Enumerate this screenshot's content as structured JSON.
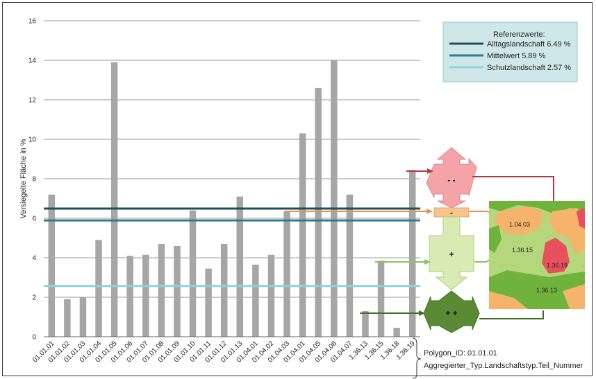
{
  "chart_data": {
    "type": "bar",
    "ylabel": "Versiegelte Fläche in %",
    "ylim": [
      0,
      16
    ],
    "yticks": [
      0,
      2,
      4,
      6,
      8,
      10,
      12,
      14,
      16
    ],
    "grid": true,
    "categories": [
      "01.01.01",
      "01.01.02",
      "01.01.03",
      "01.01.04",
      "01.01.05",
      "01.01.06",
      "01.01.07",
      "01.01.08",
      "01.01.09",
      "01.01.10",
      "01.01.11",
      "01.01.12",
      "01.01.13",
      "01.04.01",
      "01.04.02",
      "01.04.03",
      "01.04.01",
      "01.04.05",
      "01.04.06",
      "01.04.07",
      "1.36.13",
      "1.36.15",
      "1.36.18",
      "1.36.19"
    ],
    "values": [
      7.2,
      1.9,
      2.0,
      4.9,
      13.9,
      4.1,
      4.15,
      4.7,
      4.6,
      6.4,
      3.45,
      4.7,
      7.1,
      3.65,
      4.15,
      6.35,
      10.3,
      12.6,
      14.0,
      7.2,
      1.3,
      3.85,
      0.45,
      8.45
    ],
    "bar_color": "#a6a6a6",
    "reference_lines": [
      {
        "name": "Alltagslandschaft 6.49 %",
        "value": 6.49,
        "color": "#1f4e5a"
      },
      {
        "name": "Mittelwert 5.89 %",
        "value": 5.89,
        "color": "#2e7c8c"
      },
      {
        "name": "Schutzlandschaft 2.57 %",
        "value": 2.57,
        "color": "#8fd3dc"
      }
    ],
    "legend": {
      "title": "Referenzwerte:",
      "position": "top-right",
      "background": "#cfe7e8"
    }
  },
  "polygon_note": {
    "line1": "Polygon_ID: 01.01.01",
    "line2": "Aggregierter_Typ.Landschaftstyp.Teil_Nummer"
  },
  "classes": [
    {
      "label": "- -",
      "color": "#f4a3a6",
      "connector": "#b53a46"
    },
    {
      "label": "-",
      "color": "#f7c48e",
      "connector": "#e8924c"
    },
    {
      "label": "+",
      "color": "#d7ebb2",
      "connector": "#8fc05a"
    },
    {
      "label": "+ +",
      "color": "#5a8a33",
      "connector": "#3f6e25"
    }
  ],
  "map": {
    "labels": [
      "1.04.03",
      "1.36.15",
      "1.36.19",
      "1.36.13"
    ],
    "colors": {
      "light_green": "#b5d77c",
      "green": "#6fb23c",
      "orange": "#f6b36b",
      "red": "#e8505e"
    }
  }
}
